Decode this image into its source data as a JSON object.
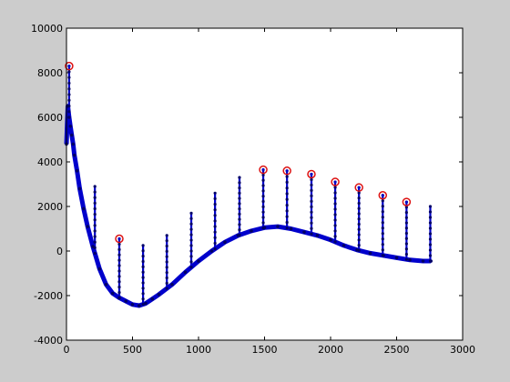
{
  "chart_data": {
    "type": "line",
    "title": "",
    "xlabel": "",
    "ylabel": "",
    "xlim": [
      0,
      3000
    ],
    "ylim": [
      -4000,
      10000
    ],
    "x_ticks": [
      0,
      500,
      1000,
      1500,
      2000,
      2500,
      3000
    ],
    "y_ticks": [
      -4000,
      -2000,
      0,
      2000,
      4000,
      6000,
      8000,
      10000
    ],
    "grid": false,
    "legend": "none",
    "background_color": "#cccccc",
    "axes_color": "#ffffff",
    "series": [
      {
        "line_color": "#0000cc",
        "marker": "dot",
        "baseline": {
          "x": [
            0,
            10,
            20,
            30,
            40,
            50,
            60,
            80,
            100,
            130,
            160,
            200,
            250,
            300,
            350,
            400,
            450,
            500,
            550,
            600,
            650,
            700,
            800,
            900,
            1000,
            1100,
            1200,
            1300,
            1400,
            1500,
            1600,
            1700,
            1800,
            1900,
            2000,
            2100,
            2200,
            2300,
            2400,
            2500,
            2600,
            2700,
            2760
          ],
          "y": [
            4800,
            6500,
            6000,
            5600,
            5200,
            4800,
            4300,
            3600,
            2800,
            1900,
            1100,
            200,
            -800,
            -1500,
            -1900,
            -2100,
            -2250,
            -2400,
            -2450,
            -2350,
            -2150,
            -1950,
            -1500,
            -950,
            -450,
            0,
            400,
            700,
            900,
            1050,
            1100,
            1000,
            850,
            700,
            500,
            250,
            50,
            -100,
            -200,
            -300,
            -400,
            -450,
            -450
          ]
        },
        "spikes": [
          {
            "x": 20,
            "y": 8300
          },
          {
            "x": 215,
            "y": 2900
          },
          {
            "x": 400,
            "y": 550
          },
          {
            "x": 580,
            "y": 250
          },
          {
            "x": 760,
            "y": 700
          },
          {
            "x": 945,
            "y": 1700
          },
          {
            "x": 1125,
            "y": 2600
          },
          {
            "x": 1310,
            "y": 3300
          },
          {
            "x": 1490,
            "y": 3650
          },
          {
            "x": 1670,
            "y": 3600
          },
          {
            "x": 1855,
            "y": 3450
          },
          {
            "x": 2035,
            "y": 3100
          },
          {
            "x": 2215,
            "y": 2850
          },
          {
            "x": 2395,
            "y": 2500
          },
          {
            "x": 2575,
            "y": 2200
          },
          {
            "x": 2755,
            "y": 2000
          }
        ]
      }
    ],
    "peak_markers": {
      "color": "#dd1111",
      "x": [
        20,
        400,
        1490,
        1670,
        1855,
        2035,
        2215,
        2395,
        2575
      ],
      "y": [
        8300,
        550,
        3650,
        3600,
        3450,
        3100,
        2850,
        2500,
        2200
      ]
    }
  }
}
